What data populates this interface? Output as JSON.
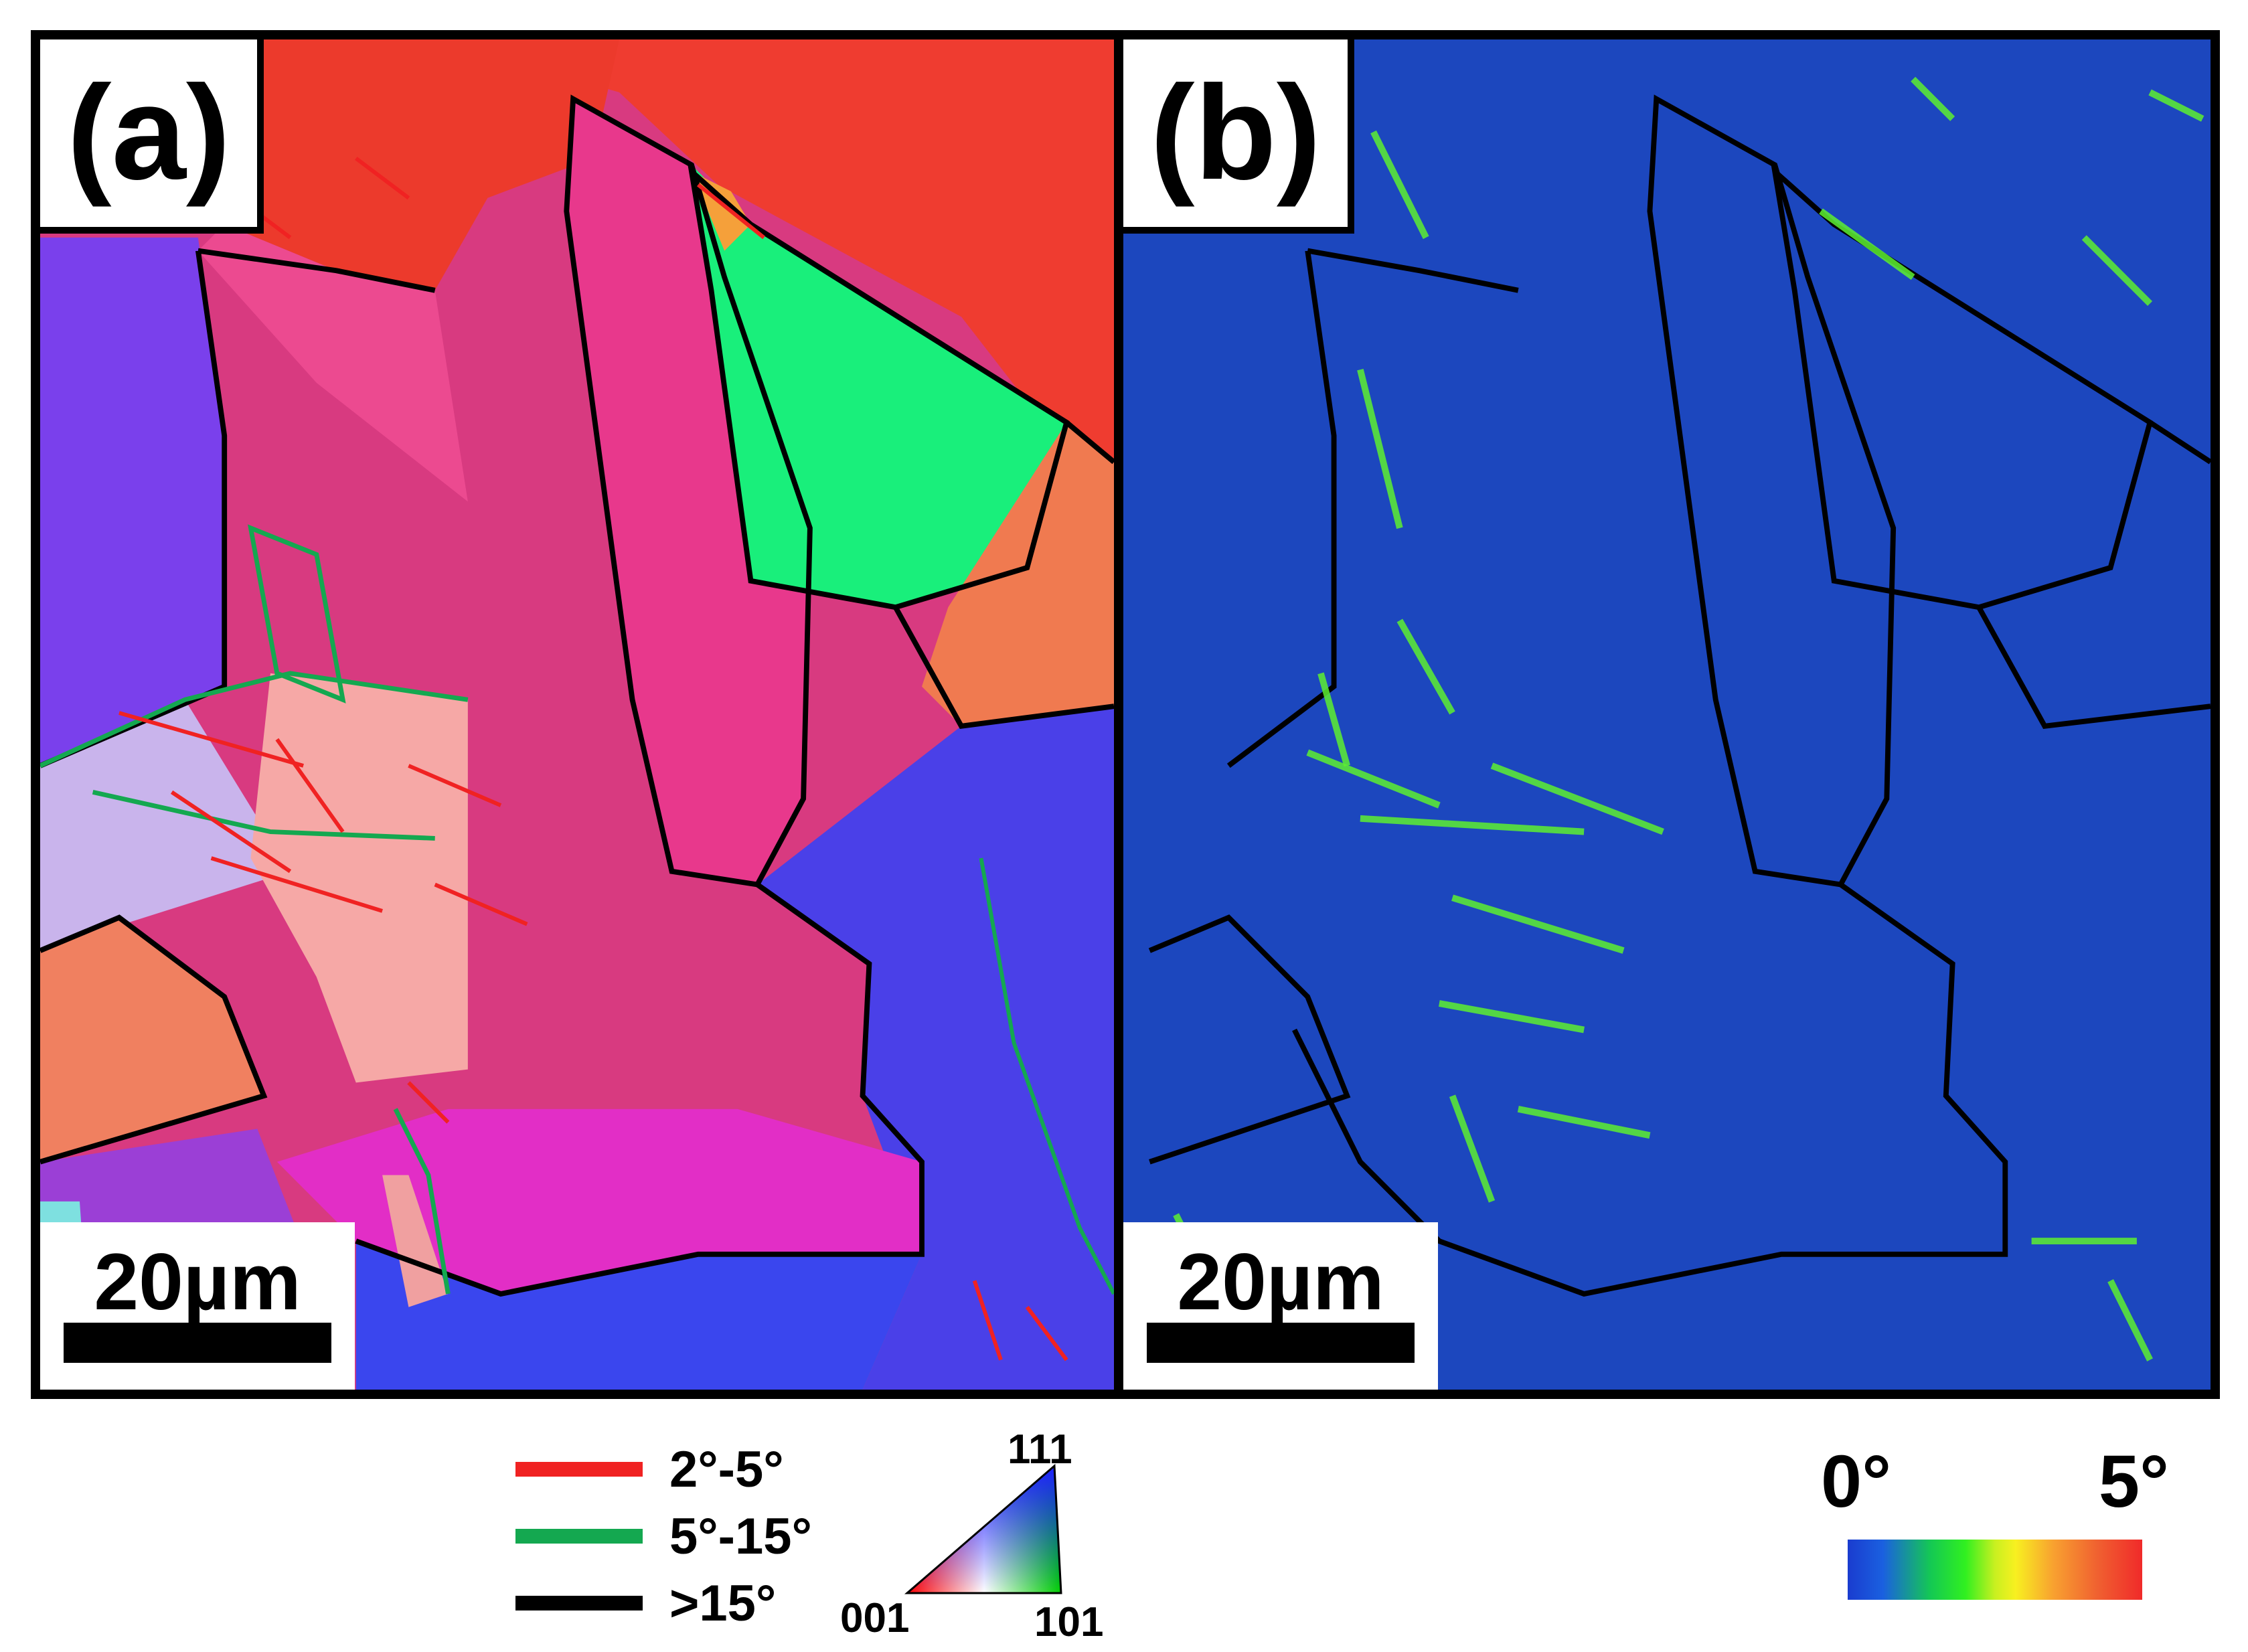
{
  "panel_a": {
    "label": "(a)",
    "scale_bar_text": "20µm",
    "colors": {
      "pink": "#e0348a",
      "red": "#f03a2a",
      "purple": "#7a3ef0",
      "blue": "#3c4ef0",
      "green": "#17ef7d",
      "orange": "#f07a50",
      "lavender": "#c9b4ec"
    }
  },
  "panel_b": {
    "label": "(b)",
    "scale_bar_text": "20µm",
    "colors": {
      "background": "#1c41bb",
      "highlight": "#5df030"
    }
  },
  "boundary_legend": [
    {
      "color": "#f02222",
      "label": "2°-5°"
    },
    {
      "color": "#14a850",
      "label": "5°-15°"
    },
    {
      "color": "#000000",
      "label": ">15°"
    }
  ],
  "ipf_triangle": {
    "top": "111",
    "left": "001",
    "right": "101"
  },
  "color_bar": {
    "min": "0°",
    "max": "5°"
  }
}
